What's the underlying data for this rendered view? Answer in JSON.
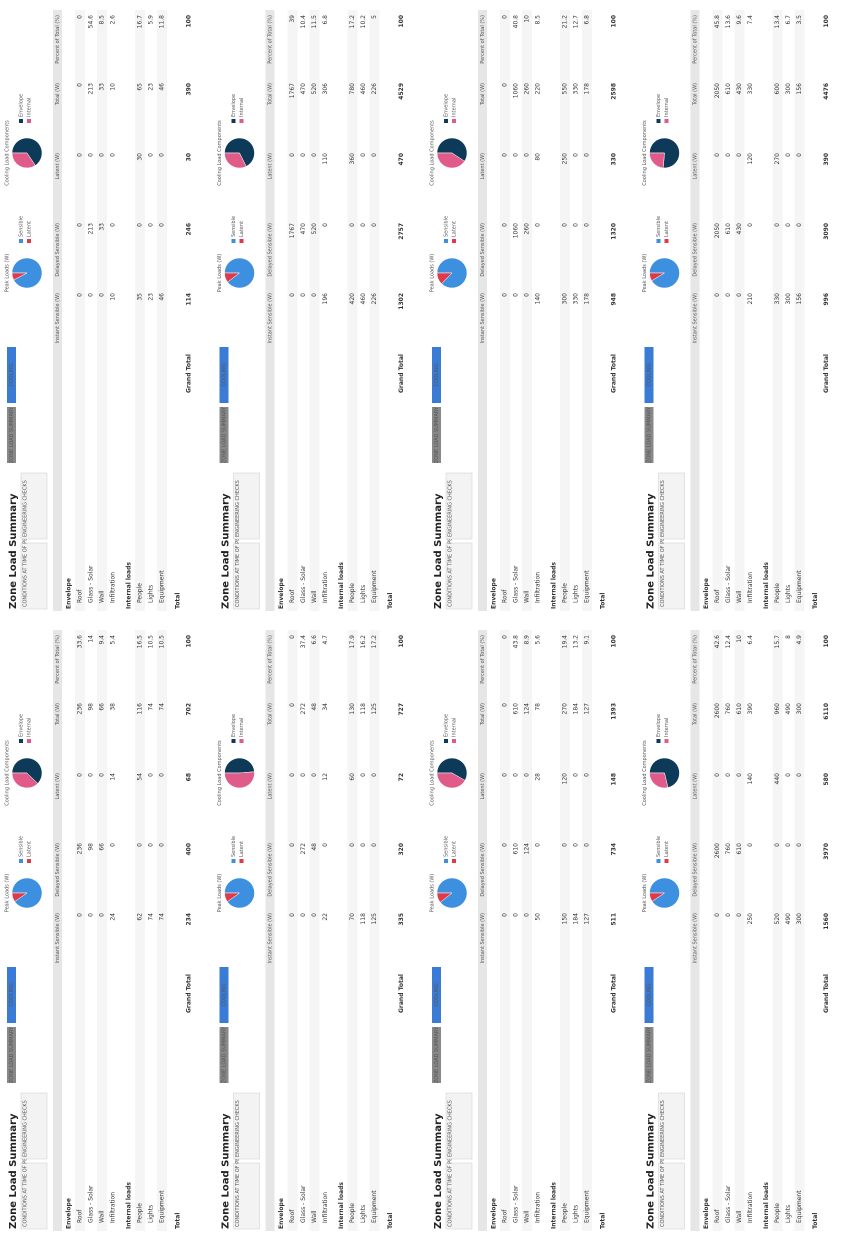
{
  "title": "Zone Load Summary",
  "tabs": [
    "ZONE LOAD SUMMARY",
    "COOLING"
  ],
  "info_labels": [
    "CONDITIONS AT TIME OF PEAK",
    "ENGINEERING CHECKS"
  ],
  "pie_titles": [
    "Peak Loads (W)",
    "Cooling Load Components"
  ],
  "peak_legend": [
    "Sensible",
    "Latent"
  ],
  "component_legend": [
    "Envelope",
    "Internal"
  ],
  "columns": [
    "Instant Sensible (W)",
    "Delayed Sensible (W)",
    "Latent (W)",
    "Total (W)",
    "Percent of Total (%)"
  ],
  "groups": [
    {
      "name": "Envelope",
      "rows": [
        "Roof",
        "Glass - Solar",
        "Wall",
        "Infiltration"
      ]
    },
    {
      "name": "Internal loads",
      "rows": [
        "People",
        "Lights",
        "Equipment"
      ]
    },
    {
      "name": "Total",
      "rows": [
        "Grand Total"
      ]
    }
  ],
  "panels": [
    {
      "peak": [
        360,
        30
      ],
      "components": [
        256,
        134
      ],
      "rows": [
        [
          0,
          0,
          0,
          0,
          0
        ],
        [
          0,
          213,
          0,
          213,
          54.6
        ],
        [
          0,
          33,
          0,
          33,
          8.5
        ],
        [
          10,
          0,
          0,
          10,
          2.6
        ],
        [
          35,
          0,
          30,
          65,
          16.7
        ],
        [
          23,
          0,
          0,
          23,
          5.9
        ],
        [
          46,
          0,
          0,
          46,
          11.8
        ],
        [
          114,
          246,
          30,
          390,
          100
        ]
      ]
    },
    {
      "peak": [
        4059,
        470
      ],
      "components": [
        3063,
        1466
      ],
      "rows": [
        [
          0,
          1767,
          0,
          1767,
          39.0
        ],
        [
          0,
          470,
          0,
          470,
          10.4
        ],
        [
          0,
          520,
          0,
          520,
          11.5
        ],
        [
          196,
          0,
          110,
          306,
          6.8
        ],
        [
          420,
          0,
          360,
          780,
          17.2
        ],
        [
          460,
          0,
          0,
          460,
          10.2
        ],
        [
          226,
          0,
          0,
          226,
          5.0
        ],
        [
          1302,
          2757,
          470,
          4529,
          100
        ]
      ]
    },
    {
      "peak": [
        2268,
        330
      ],
      "components": [
        1540,
        1058
      ],
      "rows": [
        [
          0,
          0,
          0,
          0,
          0
        ],
        [
          0,
          1060,
          0,
          1060,
          40.8
        ],
        [
          0,
          260,
          0,
          260,
          10.0
        ],
        [
          140,
          0,
          80,
          220,
          8.5
        ],
        [
          300,
          0,
          250,
          550,
          21.2
        ],
        [
          330,
          0,
          0,
          330,
          12.7
        ],
        [
          178,
          0,
          0,
          178,
          6.8
        ],
        [
          948,
          1320,
          330,
          2598,
          100
        ]
      ]
    },
    {
      "peak": [
        4086,
        390
      ],
      "components": [
        3420,
        1056
      ],
      "rows": [
        [
          0,
          2050,
          0,
          2050,
          45.8
        ],
        [
          0,
          610,
          0,
          610,
          13.6
        ],
        [
          0,
          430,
          0,
          430,
          9.6
        ],
        [
          210,
          0,
          120,
          330,
          7.4
        ],
        [
          330,
          0,
          270,
          600,
          13.4
        ],
        [
          300,
          0,
          0,
          300,
          6.7
        ],
        [
          156,
          0,
          0,
          156,
          3.5
        ],
        [
          996,
          3090,
          390,
          4476,
          100
        ]
      ]
    },
    {
      "peak": [
        634,
        68
      ],
      "components": [
        438,
        264
      ],
      "rows": [
        [
          0,
          236,
          0,
          236,
          33.6
        ],
        [
          0,
          98,
          0,
          98,
          14.0
        ],
        [
          0,
          66,
          0,
          66,
          9.4
        ],
        [
          24,
          0,
          14,
          38,
          5.4
        ],
        [
          62,
          0,
          54,
          116,
          16.5
        ],
        [
          74,
          0,
          0,
          74,
          10.5
        ],
        [
          74,
          0,
          0,
          74,
          10.5
        ],
        [
          234,
          400,
          68,
          702,
          100
        ]
      ]
    },
    {
      "peak": [
        655,
        72
      ],
      "components": [
        354,
        373
      ],
      "rows": [
        [
          0,
          0,
          0,
          0,
          0
        ],
        [
          0,
          272,
          0,
          272,
          37.4
        ],
        [
          0,
          48,
          0,
          48,
          6.6
        ],
        [
          22,
          0,
          12,
          34,
          4.7
        ],
        [
          70,
          0,
          60,
          130,
          17.9
        ],
        [
          118,
          0,
          0,
          118,
          16.2
        ],
        [
          125,
          0,
          0,
          125,
          17.2
        ],
        [
          335,
          320,
          72,
          727,
          100
        ]
      ]
    },
    {
      "peak": [
        1245,
        148
      ],
      "components": [
        812,
        581
      ],
      "rows": [
        [
          0,
          0,
          0,
          0,
          0
        ],
        [
          0,
          610,
          0,
          610,
          43.8
        ],
        [
          0,
          124,
          0,
          124,
          8.9
        ],
        [
          50,
          0,
          28,
          78,
          5.6
        ],
        [
          150,
          0,
          120,
          270,
          19.4
        ],
        [
          184,
          0,
          0,
          184,
          13.2
        ],
        [
          127,
          0,
          0,
          127,
          9.1
        ],
        [
          511,
          734,
          148,
          1393,
          100
        ]
      ]
    },
    {
      "peak": [
        5530,
        580
      ],
      "components": [
        4360,
        1750
      ],
      "rows": [
        [
          0,
          2600,
          0,
          2600,
          42.6
        ],
        [
          0,
          760,
          0,
          760,
          12.4
        ],
        [
          0,
          610,
          0,
          610,
          10.0
        ],
        [
          250,
          0,
          140,
          390,
          6.4
        ],
        [
          520,
          0,
          440,
          960,
          15.7
        ],
        [
          490,
          0,
          0,
          490,
          8.0
        ],
        [
          300,
          0,
          0,
          300,
          4.9
        ],
        [
          1560,
          3970,
          580,
          6110,
          100
        ]
      ]
    }
  ]
}
